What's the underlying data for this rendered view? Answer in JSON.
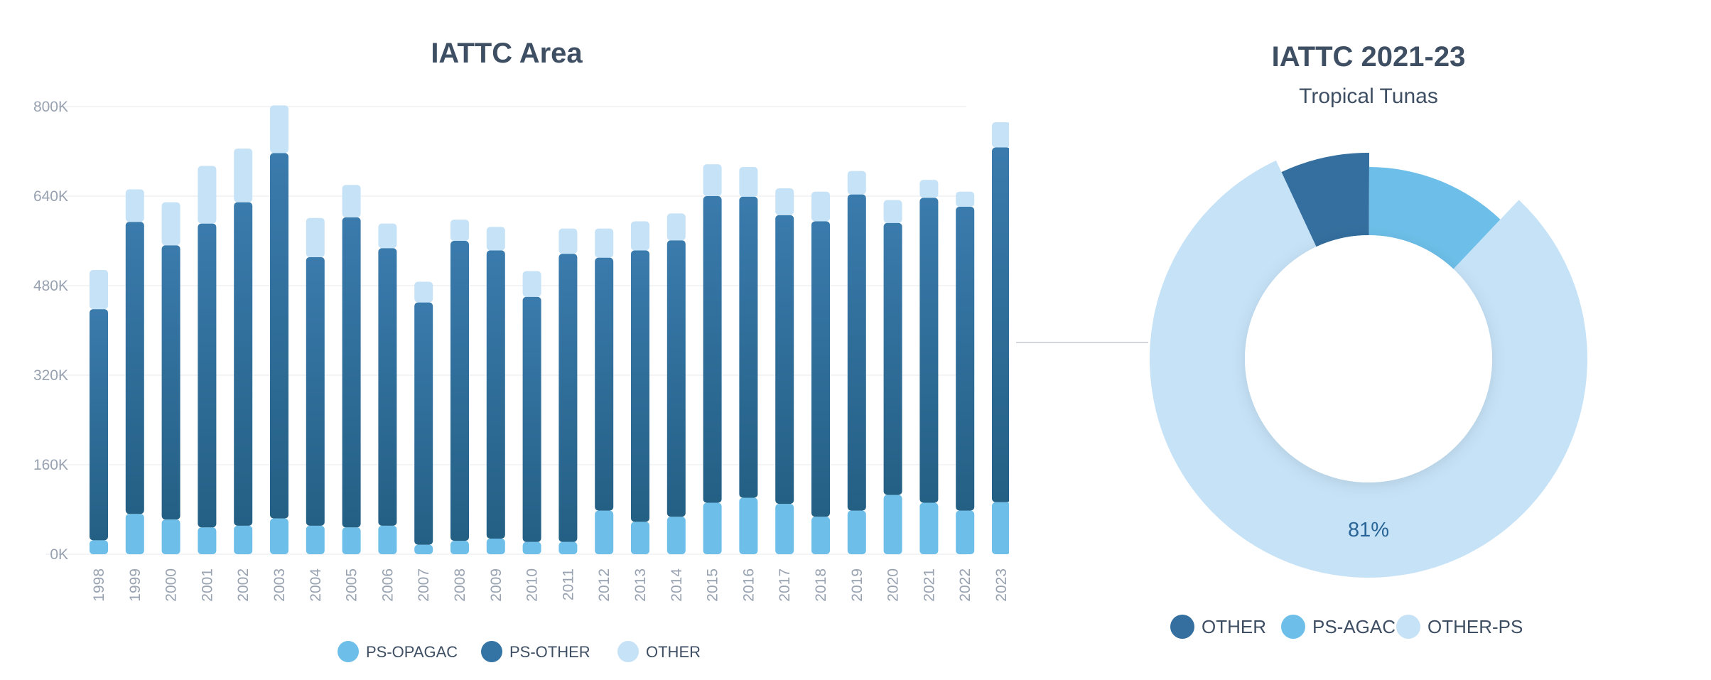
{
  "bar_chart_title": "IATTC Area",
  "pie_chart_title": "IATTC 2021-23",
  "pie_chart_subtitle": "Tropical Tunas",
  "colors": {
    "ps_opagac": "#6dbfe9",
    "ps_other": "#3474a5",
    "other": "#c6e2f7",
    "pie_other": "#346f9f",
    "pie_ps_agac": "#6dbfe9",
    "pie_other_ps": "#c6e2f7"
  },
  "chart_data": [
    {
      "type": "bar",
      "stacked": true,
      "title": "IATTC Area",
      "categories": [
        "1998",
        "1999",
        "2000",
        "2001",
        "2002",
        "2003",
        "2004",
        "2005",
        "2006",
        "2007",
        "2008",
        "2009",
        "2010",
        "2011",
        "2012",
        "2013",
        "2014",
        "2015",
        "2016",
        "2017",
        "2018",
        "2019",
        "2020",
        "2021",
        "2022",
        "2023"
      ],
      "series": [
        {
          "name": "PS-OPAGAC",
          "values": [
            25000,
            72000,
            62000,
            48000,
            51000,
            64000,
            51000,
            48000,
            51000,
            17000,
            24000,
            28000,
            22000,
            22000,
            78000,
            58000,
            67000,
            92000,
            101000,
            90000,
            67000,
            78000,
            106000,
            92000,
            78000,
            93000
          ]
        },
        {
          "name": "PS-OTHER",
          "values": [
            413000,
            522000,
            490000,
            543000,
            578000,
            653000,
            480000,
            554000,
            496000,
            433000,
            536000,
            515000,
            438000,
            515000,
            452000,
            485000,
            494000,
            548000,
            538000,
            516000,
            528000,
            565000,
            486000,
            545000,
            543000,
            634000
          ]
        },
        {
          "name": "OTHER",
          "values": [
            70000,
            58000,
            77000,
            103000,
            96000,
            85000,
            70000,
            58000,
            44000,
            37000,
            38000,
            42000,
            46000,
            45000,
            52000,
            52000,
            48000,
            57000,
            53000,
            48000,
            53000,
            42000,
            41000,
            32000,
            27000,
            45000
          ]
        }
      ],
      "yticks": [
        "0K",
        "160K",
        "320K",
        "480K",
        "640K",
        "800K"
      ],
      "ylim": [
        0,
        800000
      ],
      "grid": true,
      "legend": "bottom"
    },
    {
      "type": "pie",
      "donut": true,
      "title": "IATTC 2021-23",
      "subtitle": "Tropical Tunas",
      "labels": [
        "OTHER",
        "PS-AGAC",
        "OTHER-PS"
      ],
      "values": [
        7,
        12,
        81
      ],
      "data_label": "81%",
      "legend": "bottom"
    }
  ]
}
